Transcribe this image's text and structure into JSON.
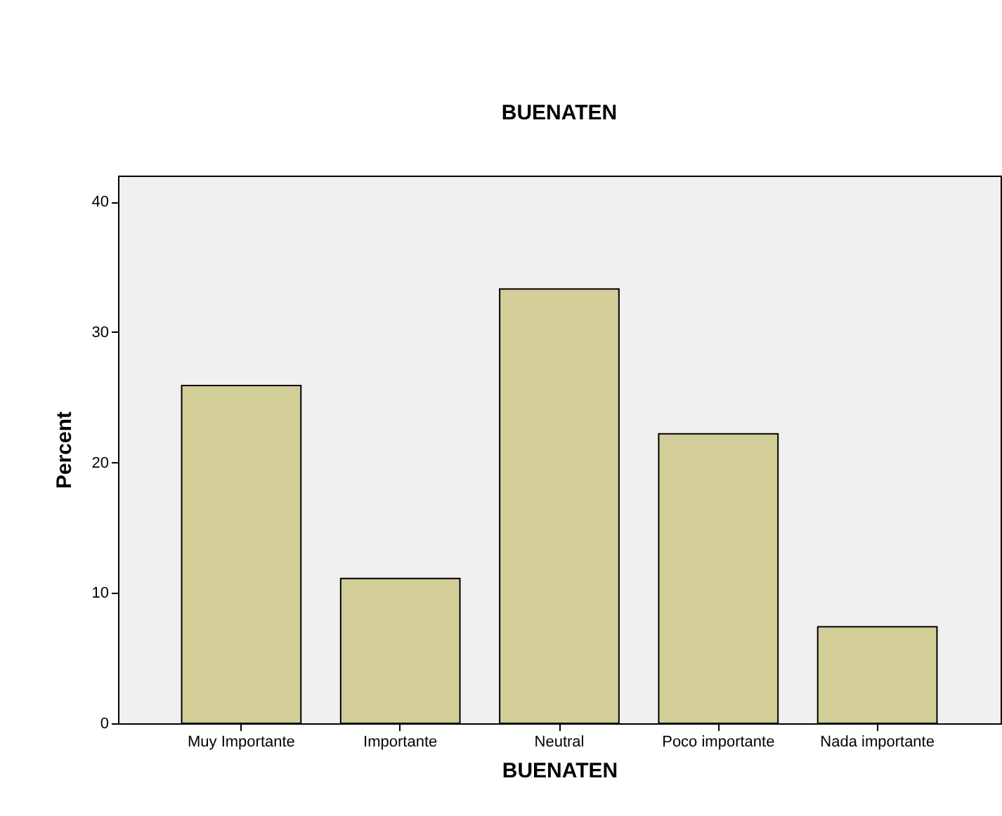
{
  "chart_data": {
    "type": "bar",
    "title": "BUENATEN",
    "xlabel": "BUENATEN",
    "ylabel": "Percent",
    "categories": [
      "Muy Importante",
      "Importante",
      "Neutral",
      "Poco importante",
      "Nada importante"
    ],
    "values": [
      25.9,
      11.1,
      33.3,
      22.2,
      7.4
    ],
    "color": "#d3ce97",
    "ylim": [
      0,
      42
    ],
    "yticks": [
      0,
      10,
      20,
      30,
      40
    ],
    "grid": false
  }
}
